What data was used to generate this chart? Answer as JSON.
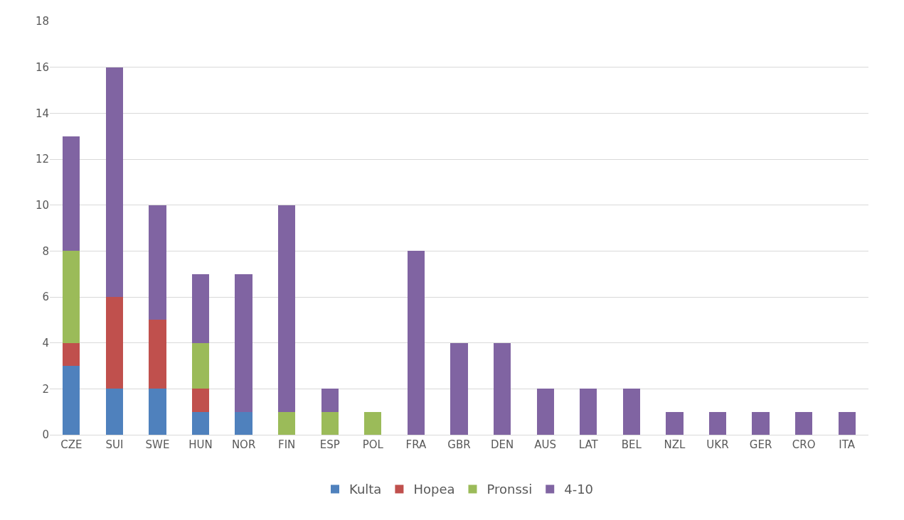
{
  "chart_data": {
    "type": "bar",
    "stacked": true,
    "categories": [
      "CZE",
      "SUI",
      "SWE",
      "HUN",
      "NOR",
      "FIN",
      "ESP",
      "POL",
      "FRA",
      "GBR",
      "DEN",
      "AUS",
      "LAT",
      "BEL",
      "NZL",
      "UKR",
      "GER",
      "CRO",
      "ITA"
    ],
    "series": [
      {
        "name": "Kulta",
        "color": "#4f81bd",
        "values": [
          3,
          2,
          2,
          1,
          1,
          0,
          0,
          0,
          0,
          0,
          0,
          0,
          0,
          0,
          0,
          0,
          0,
          0,
          0
        ]
      },
      {
        "name": "Hopea",
        "color": "#c0504d",
        "values": [
          1,
          4,
          3,
          1,
          0,
          0,
          0,
          0,
          0,
          0,
          0,
          0,
          0,
          0,
          0,
          0,
          0,
          0,
          0
        ]
      },
      {
        "name": "Pronssi",
        "color": "#9bbb59",
        "values": [
          4,
          0,
          0,
          2,
          0,
          1,
          1,
          1,
          0,
          0,
          0,
          0,
          0,
          0,
          0,
          0,
          0,
          0,
          0
        ]
      },
      {
        "name": "4-10",
        "color": "#8064a2",
        "values": [
          5,
          10,
          5,
          3,
          6,
          9,
          1,
          0,
          8,
          4,
          4,
          2,
          2,
          2,
          1,
          1,
          1,
          1,
          1
        ]
      }
    ],
    "ylim": [
      0,
      18
    ],
    "yticks": [
      0,
      2,
      4,
      6,
      8,
      10,
      12,
      14,
      16,
      18
    ],
    "grid": "y",
    "legend": "bottom"
  }
}
